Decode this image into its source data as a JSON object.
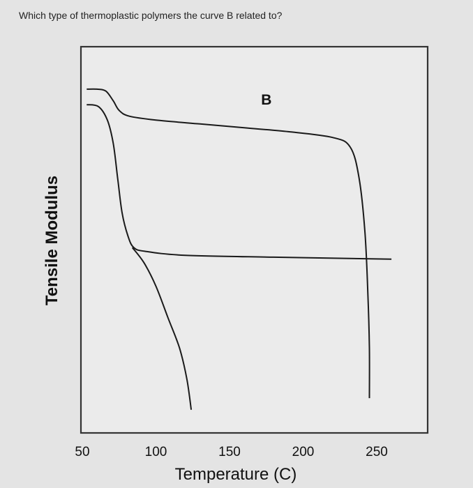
{
  "question": "Which type of thermoplastic polymers the curve B related to?",
  "chart_data": {
    "type": "line",
    "xlabel": "Temperature (C)",
    "ylabel": "Tensile Modulus",
    "x_ticks": [
      50,
      100,
      150,
      200,
      250
    ],
    "xlim": [
      45,
      255
    ],
    "ylim": [
      0,
      100
    ],
    "grid": false,
    "line_color": "#1a1a1a",
    "annotations": [
      {
        "text": "B",
        "x": 175,
        "y": 85
      }
    ],
    "series": [
      {
        "id": "curve-b",
        "points": [
          [
            53,
            89
          ],
          [
            60,
            89
          ],
          [
            66,
            88.5
          ],
          [
            71,
            86
          ],
          [
            75,
            83.5
          ],
          [
            82,
            82
          ],
          [
            100,
            81
          ],
          [
            130,
            80
          ],
          [
            160,
            79
          ],
          [
            190,
            78
          ],
          [
            220,
            76.5
          ],
          [
            232,
            74
          ],
          [
            238,
            66
          ],
          [
            242,
            52
          ],
          [
            244,
            36
          ],
          [
            245,
            22
          ],
          [
            245,
            9
          ]
        ]
      },
      {
        "id": "curve-middle",
        "points": [
          [
            53,
            85
          ],
          [
            61,
            84.5
          ],
          [
            67,
            81
          ],
          [
            71,
            75
          ],
          [
            74,
            66
          ],
          [
            77,
            57
          ],
          [
            81,
            51
          ],
          [
            85,
            48
          ],
          [
            93,
            47
          ],
          [
            120,
            46
          ],
          [
            180,
            45.5
          ],
          [
            260,
            45
          ]
        ]
      },
      {
        "id": "curve-drop",
        "points": [
          [
            84,
            48
          ],
          [
            92,
            44
          ],
          [
            100,
            38
          ],
          [
            108,
            30
          ],
          [
            116,
            22
          ],
          [
            121,
            14
          ],
          [
            124,
            6
          ]
        ]
      }
    ]
  }
}
